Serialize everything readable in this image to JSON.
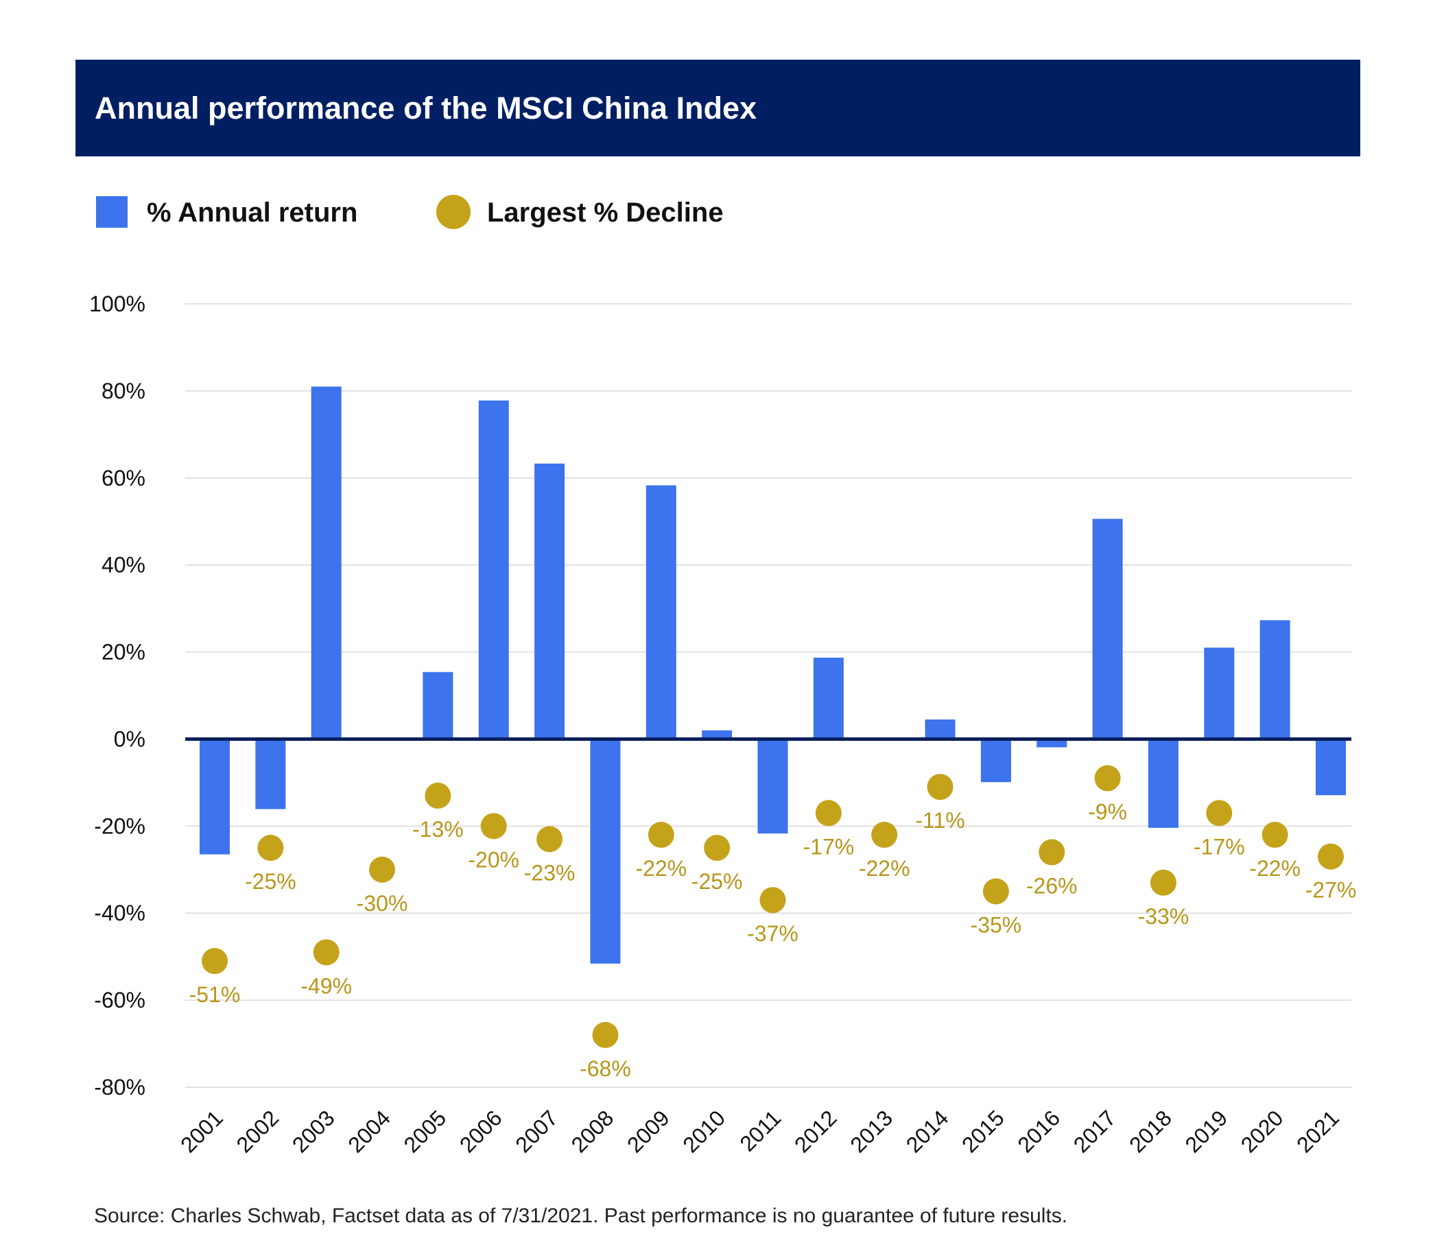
{
  "header": {
    "title": "Annual performance of the MSCI China Index"
  },
  "legend": {
    "items": [
      {
        "label": "% Annual return",
        "color": "#3d73ec",
        "shape": "square"
      },
      {
        "label": "Largest % Decline",
        "color": "#c4a21a",
        "shape": "circle"
      }
    ]
  },
  "chart_data": {
    "type": "bar",
    "title": "Annual performance of the MSCI China Index",
    "xlabel": "",
    "ylabel": "",
    "ylim": [
      -80,
      100
    ],
    "y_ticks": [
      100,
      80,
      60,
      40,
      20,
      0,
      -20,
      -40,
      -60,
      -80
    ],
    "y_tick_labels": [
      "100%",
      "80%",
      "60%",
      "40%",
      "20%",
      "0%",
      "-20%",
      "-40%",
      "-60%",
      "-80%"
    ],
    "grid": true,
    "legend_position": "top-left",
    "categories": [
      "2001",
      "2002",
      "2003",
      "2004",
      "2005",
      "2006",
      "2007",
      "2008",
      "2009",
      "2010",
      "2011",
      "2012",
      "2013",
      "2014",
      "2015",
      "2016",
      "2017",
      "2018",
      "2019",
      "2020",
      "2021"
    ],
    "series": [
      {
        "name": "% Annual return",
        "type": "bar",
        "color": "#3d73ec",
        "values": [
          -26.5,
          -16.1,
          81.0,
          0,
          15.4,
          77.8,
          63.3,
          -51.6,
          58.3,
          2.0,
          -21.7,
          18.7,
          0,
          4.5,
          -9.9,
          -1.9,
          50.6,
          -20.4,
          21.0,
          27.3,
          -12.9
        ]
      },
      {
        "name": "Largest % Decline",
        "type": "scatter",
        "color": "#c4a21a",
        "values": [
          -51,
          -25,
          -49,
          -30,
          -13,
          -20,
          -23,
          -68,
          -22,
          -25,
          -37,
          -17,
          -22,
          -11,
          -35,
          -26,
          -9,
          -33,
          -17,
          -22,
          -27
        ],
        "labels": [
          "-51%",
          "-25%",
          "-49%",
          "-30%",
          "-13%",
          "-20%",
          "-23%",
          "-68%",
          "-22%",
          "-25%",
          "-37%",
          "-17%",
          "-22%",
          "-11%",
          "-35%",
          "-26%",
          "-9%",
          "-33%",
          "-17%",
          "-22%",
          "-27%"
        ]
      }
    ]
  },
  "source": "Source: Charles Schwab, Factset data as of 7/31/2021. Past performance is no guarantee of future results.",
  "colors": {
    "banner": "#001f63",
    "bar": "#3d73ec",
    "dot": "#c4a21a",
    "dot_label": "#b8961a",
    "zero_line": "#0a1f5c",
    "grid": "#d9d9d9"
  }
}
